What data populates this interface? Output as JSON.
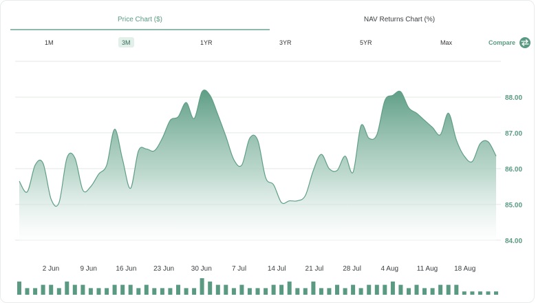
{
  "tabs": [
    {
      "label": "Price Chart ($)",
      "active": true
    },
    {
      "label": "NAV Returns Chart (%)",
      "active": false
    }
  ],
  "ranges": [
    {
      "label": "1M",
      "active": false
    },
    {
      "label": "3M",
      "active": true
    },
    {
      "label": "1YR",
      "active": false
    },
    {
      "label": "3YR",
      "active": false
    },
    {
      "label": "5YR",
      "active": false
    },
    {
      "label": "Max",
      "active": false
    }
  ],
  "compare": {
    "label": "Compare",
    "icon": "swap-arrows-icon"
  },
  "colors": {
    "accent": "#5a9a82",
    "area_top": "#5f9e86",
    "bars": "#5a9a82"
  },
  "chart_data": {
    "type": "area",
    "title": "",
    "xlabel": "",
    "ylabel": "",
    "ylim": [
      83.9,
      89.0
    ],
    "yticks": [
      "88.00",
      "87.00",
      "86.00",
      "85.00",
      "84.00"
    ],
    "xtick_labels": [
      "2 Jun",
      "9 Jun",
      "16 Jun",
      "23 Jun",
      "30 Jun",
      "7 Jul",
      "14 Jul",
      "21 Jul",
      "28 Jul",
      "4 Aug",
      "11 Aug",
      "18 Aug"
    ],
    "price_series": [
      85.65,
      85.35,
      86.1,
      86.15,
      85.15,
      85.05,
      86.3,
      86.3,
      85.4,
      85.5,
      85.85,
      86.1,
      87.1,
      86.25,
      85.45,
      86.5,
      86.55,
      86.5,
      86.85,
      87.35,
      87.45,
      87.85,
      87.4,
      88.15,
      88.05,
      87.5,
      86.9,
      86.25,
      86.1,
      86.85,
      86.8,
      85.75,
      85.55,
      85.05,
      85.1,
      85.1,
      85.25,
      85.95,
      86.4,
      86.0,
      85.95,
      86.35,
      85.9,
      87.2,
      86.85,
      86.95,
      87.9,
      88.05,
      88.15,
      87.7,
      87.55,
      87.35,
      87.15,
      86.95,
      87.55,
      86.8,
      86.35,
      86.2,
      86.7,
      86.75,
      86.35
    ],
    "volume_series": [
      4,
      2,
      2,
      3,
      3,
      2,
      4,
      3,
      3,
      2,
      2,
      2,
      3,
      3,
      3,
      2,
      3,
      2,
      2,
      2,
      3,
      2,
      2,
      5,
      4,
      3,
      3,
      2,
      3,
      2,
      2,
      2,
      3,
      3,
      4,
      2,
      2,
      4,
      2,
      2,
      3,
      2,
      3,
      2,
      3,
      3,
      3,
      4,
      3,
      2,
      3,
      2,
      2,
      3,
      3,
      3,
      1,
      1,
      1,
      1,
      1
    ]
  }
}
